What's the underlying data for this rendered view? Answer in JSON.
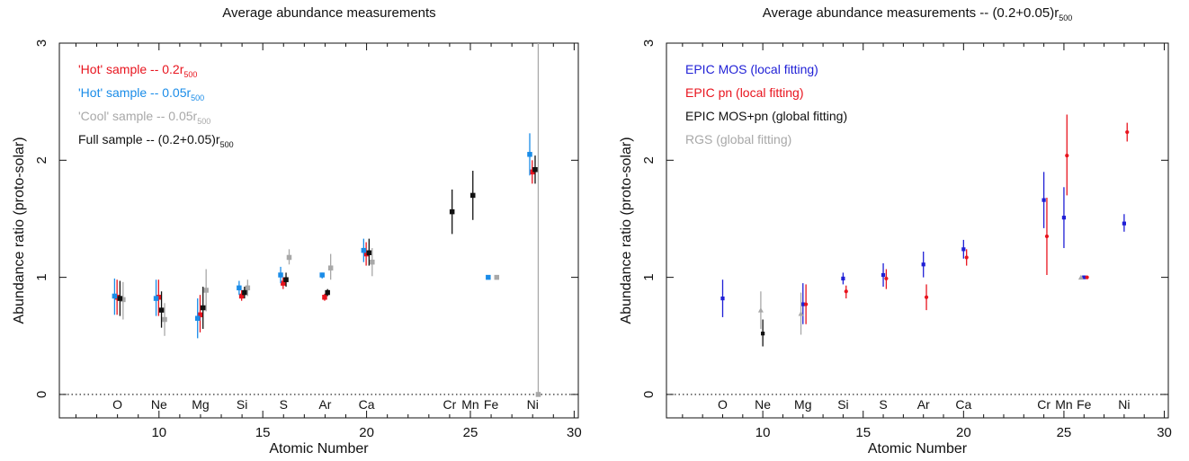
{
  "figure": {
    "panels": [
      {
        "title": "Average abundance measurements",
        "title_sub": "",
        "title_tail": ""
      },
      {
        "title": "Average abundance measurements -- (0.2+0.05)r",
        "title_sub": "500",
        "title_tail": ""
      }
    ]
  },
  "chart_data": [
    {
      "type": "scatter",
      "title": "Average abundance measurements",
      "xlabel": "Atomic Number",
      "ylabel": "Abundance ratio (proto-solar)",
      "xlim": [
        5.2,
        30.2
      ],
      "ylim": [
        -0.2,
        3.0
      ],
      "x_ticks": [
        10,
        15,
        20,
        25,
        30
      ],
      "y_ticks": [
        0,
        1,
        2,
        3
      ],
      "reference_line": {
        "y": 0,
        "style": "dotted"
      },
      "grid": false,
      "legend_position": "top-left",
      "element_labels": [
        {
          "x": 8,
          "label": "O"
        },
        {
          "x": 10,
          "label": "Ne"
        },
        {
          "x": 12,
          "label": "Mg"
        },
        {
          "x": 14,
          "label": "Si"
        },
        {
          "x": 16,
          "label": "S"
        },
        {
          "x": 18,
          "label": "Ar"
        },
        {
          "x": 20,
          "label": "Ca"
        },
        {
          "x": 24,
          "label": "Cr"
        },
        {
          "x": 25,
          "label": "Mn"
        },
        {
          "x": 26,
          "label": "Fe"
        },
        {
          "x": 28,
          "label": "Ni"
        }
      ],
      "series": [
        {
          "name": "'Hot' sample -- 0.2r",
          "name_sub": "500",
          "color": "#e8141e",
          "marker": "square",
          "points": [
            {
              "x": 7.98,
              "y": 0.83,
              "ylo": 0.68,
              "yhi": 0.98
            },
            {
              "x": 9.98,
              "y": 0.83,
              "ylo": 0.67,
              "yhi": 0.98
            },
            {
              "x": 11.98,
              "y": 0.68,
              "ylo": 0.53,
              "yhi": 0.85
            },
            {
              "x": 13.98,
              "y": 0.84,
              "ylo": 0.8,
              "yhi": 0.89
            },
            {
              "x": 15.98,
              "y": 0.95,
              "ylo": 0.9,
              "yhi": 1.0
            },
            {
              "x": 17.98,
              "y": 0.83,
              "ylo": 0.8,
              "yhi": 0.86
            },
            {
              "x": 19.98,
              "y": 1.2,
              "ylo": 1.1,
              "yhi": 1.3
            },
            {
              "x": 27.98,
              "y": 1.9,
              "ylo": 1.8,
              "yhi": 2.0
            }
          ]
        },
        {
          "name": "'Hot' sample -- 0.05r",
          "name_sub": "500",
          "color": "#1a8ce8",
          "marker": "square",
          "points": [
            {
              "x": 7.86,
              "y": 0.84,
              "ylo": 0.68,
              "yhi": 0.99
            },
            {
              "x": 9.86,
              "y": 0.82,
              "ylo": 0.67,
              "yhi": 0.98
            },
            {
              "x": 11.86,
              "y": 0.65,
              "ylo": 0.48,
              "yhi": 0.82
            },
            {
              "x": 13.86,
              "y": 0.91,
              "ylo": 0.85,
              "yhi": 0.97
            },
            {
              "x": 15.86,
              "y": 1.02,
              "ylo": 0.95,
              "yhi": 1.09
            },
            {
              "x": 17.86,
              "y": 1.02,
              "ylo": 0.99,
              "yhi": 1.04
            },
            {
              "x": 19.86,
              "y": 1.23,
              "ylo": 1.13,
              "yhi": 1.33
            },
            {
              "x": 25.86,
              "y": 1.0,
              "ylo": 0.99,
              "yhi": 1.01
            },
            {
              "x": 27.86,
              "y": 2.05,
              "ylo": 1.87,
              "yhi": 2.23
            }
          ]
        },
        {
          "name": "'Cool' sample -- 0.05r",
          "name_sub": "500",
          "color": "#a8a8a8",
          "marker": "square",
          "points": [
            {
              "x": 8.27,
              "y": 0.81,
              "ylo": 0.64,
              "yhi": 0.96
            },
            {
              "x": 10.27,
              "y": 0.64,
              "ylo": 0.5,
              "yhi": 0.78
            },
            {
              "x": 12.27,
              "y": 0.89,
              "ylo": 0.71,
              "yhi": 1.07
            },
            {
              "x": 14.27,
              "y": 0.91,
              "ylo": 0.84,
              "yhi": 0.98
            },
            {
              "x": 16.27,
              "y": 1.17,
              "ylo": 1.11,
              "yhi": 1.24
            },
            {
              "x": 18.27,
              "y": 1.08,
              "ylo": 0.98,
              "yhi": 1.2
            },
            {
              "x": 20.27,
              "y": 1.13,
              "ylo": 1.01,
              "yhi": 1.25
            },
            {
              "x": 26.27,
              "y": 1.0,
              "ylo": 0.99,
              "yhi": 1.01
            },
            {
              "x": 28.27,
              "y": 0.0,
              "ylo": 0.0,
              "yhi": 3.0
            }
          ]
        },
        {
          "name": "Full sample -- (0.2+0.05)r",
          "name_sub": "500",
          "color": "#111111",
          "marker": "square",
          "points": [
            {
              "x": 8.12,
              "y": 0.82,
              "ylo": 0.67,
              "yhi": 0.97
            },
            {
              "x": 10.12,
              "y": 0.72,
              "ylo": 0.57,
              "yhi": 0.88
            },
            {
              "x": 12.12,
              "y": 0.74,
              "ylo": 0.56,
              "yhi": 0.92
            },
            {
              "x": 14.12,
              "y": 0.87,
              "ylo": 0.82,
              "yhi": 0.92
            },
            {
              "x": 16.12,
              "y": 0.98,
              "ylo": 0.92,
              "yhi": 1.04
            },
            {
              "x": 18.12,
              "y": 0.87,
              "ylo": 0.84,
              "yhi": 0.9
            },
            {
              "x": 20.12,
              "y": 1.21,
              "ylo": 1.1,
              "yhi": 1.33
            },
            {
              "x": 24.12,
              "y": 1.56,
              "ylo": 1.37,
              "yhi": 1.75
            },
            {
              "x": 25.12,
              "y": 1.7,
              "ylo": 1.49,
              "yhi": 1.91
            },
            {
              "x": 28.12,
              "y": 1.92,
              "ylo": 1.8,
              "yhi": 2.04
            }
          ]
        }
      ]
    },
    {
      "type": "scatter",
      "title": "Average abundance measurements -- (0.2+0.05)r500",
      "xlabel": "Atomic Number",
      "ylabel": "Abundance ratio (proto-solar)",
      "xlim": [
        5.2,
        30.2
      ],
      "ylim": [
        -0.2,
        3.0
      ],
      "x_ticks": [
        10,
        15,
        20,
        25,
        30
      ],
      "y_ticks": [
        0,
        1,
        2,
        3
      ],
      "reference_line": {
        "y": 0,
        "style": "dotted"
      },
      "grid": false,
      "legend_position": "top-left",
      "element_labels": [
        {
          "x": 8,
          "label": "O"
        },
        {
          "x": 10,
          "label": "Ne"
        },
        {
          "x": 12,
          "label": "Mg"
        },
        {
          "x": 14,
          "label": "Si"
        },
        {
          "x": 16,
          "label": "S"
        },
        {
          "x": 18,
          "label": "Ar"
        },
        {
          "x": 20,
          "label": "Ca"
        },
        {
          "x": 24,
          "label": "Cr"
        },
        {
          "x": 25,
          "label": "Mn"
        },
        {
          "x": 26,
          "label": "Fe"
        },
        {
          "x": 28,
          "label": "Ni"
        }
      ],
      "series": [
        {
          "name": "EPIC MOS (local fitting)",
          "name_sub": "",
          "color": "#1f1fd6",
          "marker": "square",
          "points": [
            {
              "x": 8.0,
              "y": 0.82,
              "ylo": 0.66,
              "yhi": 0.98
            },
            {
              "x": 12.0,
              "y": 0.77,
              "ylo": 0.6,
              "yhi": 0.95
            },
            {
              "x": 14.0,
              "y": 0.99,
              "ylo": 0.94,
              "yhi": 1.04
            },
            {
              "x": 16.0,
              "y": 1.02,
              "ylo": 0.92,
              "yhi": 1.12
            },
            {
              "x": 18.0,
              "y": 1.11,
              "ylo": 1.0,
              "yhi": 1.22
            },
            {
              "x": 20.0,
              "y": 1.24,
              "ylo": 1.16,
              "yhi": 1.32
            },
            {
              "x": 24.0,
              "y": 1.66,
              "ylo": 1.42,
              "yhi": 1.9
            },
            {
              "x": 25.0,
              "y": 1.51,
              "ylo": 1.25,
              "yhi": 1.77
            },
            {
              "x": 26.0,
              "y": 1.0,
              "ylo": 0.99,
              "yhi": 1.01
            },
            {
              "x": 28.0,
              "y": 1.46,
              "ylo": 1.39,
              "yhi": 1.54
            }
          ]
        },
        {
          "name": "EPIC pn (local fitting)",
          "name_sub": "",
          "color": "#e8141e",
          "marker": "dot",
          "points": [
            {
              "x": 12.15,
              "y": 0.77,
              "ylo": 0.6,
              "yhi": 0.94
            },
            {
              "x": 14.15,
              "y": 0.88,
              "ylo": 0.82,
              "yhi": 0.93
            },
            {
              "x": 16.15,
              "y": 0.99,
              "ylo": 0.9,
              "yhi": 1.07
            },
            {
              "x": 18.15,
              "y": 0.83,
              "ylo": 0.72,
              "yhi": 0.94
            },
            {
              "x": 20.15,
              "y": 1.17,
              "ylo": 1.1,
              "yhi": 1.24
            },
            {
              "x": 24.15,
              "y": 1.35,
              "ylo": 1.02,
              "yhi": 1.68
            },
            {
              "x": 25.15,
              "y": 2.04,
              "ylo": 1.7,
              "yhi": 2.39
            },
            {
              "x": 26.15,
              "y": 1.0,
              "ylo": 0.99,
              "yhi": 1.01
            },
            {
              "x": 28.15,
              "y": 2.24,
              "ylo": 2.16,
              "yhi": 2.32
            }
          ]
        },
        {
          "name": "EPIC MOS+pn (global fitting)",
          "name_sub": "",
          "color": "#111111",
          "marker": "square",
          "points": [
            {
              "x": 10.0,
              "y": 0.52,
              "ylo": 0.41,
              "yhi": 0.64
            }
          ]
        },
        {
          "name": "RGS (global fitting)",
          "name_sub": "",
          "color": "#a8a8a8",
          "marker": "triangle",
          "points": [
            {
              "x": 9.9,
              "y": 0.72,
              "ylo": 0.56,
              "yhi": 0.88
            },
            {
              "x": 11.9,
              "y": 0.69,
              "ylo": 0.51,
              "yhi": 0.87
            },
            {
              "x": 25.85,
              "y": 1.0,
              "ylo": 0.99,
              "yhi": 1.01
            }
          ]
        }
      ]
    }
  ]
}
